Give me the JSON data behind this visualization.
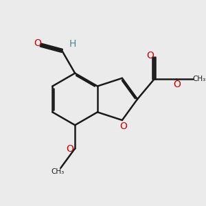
{
  "bg_color": "#EBEBEB",
  "bond_color": "#1a1a1a",
  "oxygen_color": "#CC0000",
  "hydrogen_color": "#4A8A8A",
  "lw": 1.8,
  "dbo": 0.07,
  "figsize": [
    3.0,
    3.0
  ],
  "dpi": 100,
  "xlim": [
    0,
    10
  ],
  "ylim": [
    0,
    10
  ]
}
